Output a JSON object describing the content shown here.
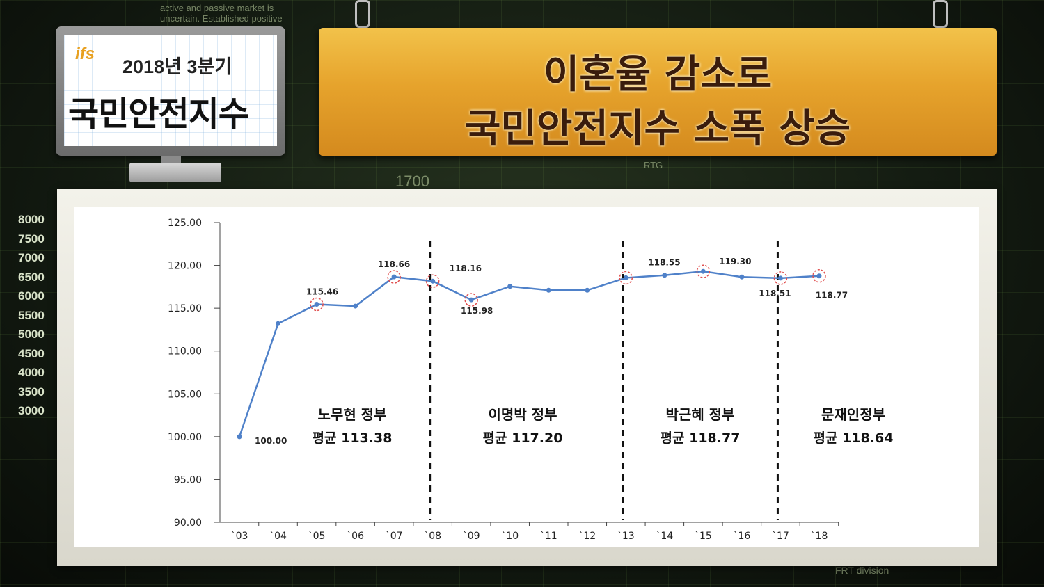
{
  "header": {
    "logo_text": "ifs",
    "period": "2018년 3분기",
    "index_name": "국민안전지수",
    "headline_line1": "이혼율 감소로",
    "headline_line2": "국민안전지수 소폭 상승"
  },
  "chart_data": {
    "type": "line",
    "categories": [
      "`03",
      "`04",
      "`05",
      "`06",
      "`07",
      "`08",
      "`09",
      "`10",
      "`11",
      "`12",
      "`13",
      "`14",
      "`15",
      "`16",
      "`17",
      "`18"
    ],
    "values": [
      100.0,
      113.2,
      115.46,
      115.25,
      118.66,
      118.16,
      115.98,
      117.55,
      117.1,
      117.1,
      118.55,
      118.85,
      119.3,
      118.65,
      118.51,
      118.77
    ],
    "ylim": [
      90,
      125
    ],
    "yticks": [
      "90.00",
      "95.00",
      "100.00",
      "105.00",
      "110.00",
      "115.00",
      "120.00",
      "125.00"
    ],
    "point_labels": [
      {
        "index": 0,
        "label": "100.00"
      },
      {
        "index": 2,
        "label": "115.46"
      },
      {
        "index": 4,
        "label": "118.66"
      },
      {
        "index": 5,
        "label": "118.16"
      },
      {
        "index": 6,
        "label": "115.98"
      },
      {
        "index": 10,
        "label": "118.55"
      },
      {
        "index": 12,
        "label": "119.30"
      },
      {
        "index": 14,
        "label": "118.51"
      },
      {
        "index": 15,
        "label": "118.77"
      }
    ],
    "line_color": "#4f81c9",
    "marker_highlight_color": "#e05050",
    "dividers_at_index": [
      5,
      10,
      14
    ],
    "periods": [
      {
        "name": "노무현 정부",
        "average": "평균 113.38"
      },
      {
        "name": "이명박 정부",
        "average": "평균 117.20"
      },
      {
        "name": "박근혜 정부",
        "average": "평균 118.77"
      },
      {
        "name": "문재인정부",
        "average": "평균 118.64"
      }
    ]
  },
  "background": {
    "text1": "active and passive market is",
    "text2": "uncertain. Established positive",
    "y_scale": [
      "8000",
      "7500",
      "7000",
      "6500",
      "6000",
      "5500",
      "5000",
      "4500",
      "4000",
      "3500",
      "3000"
    ],
    "label_rtg": "RTG",
    "label_1700": "1700",
    "label_frt": "FRT division"
  }
}
